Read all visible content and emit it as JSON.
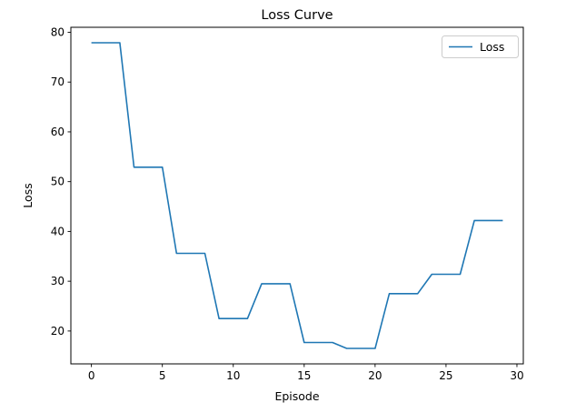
{
  "chart_data": {
    "type": "line",
    "title": "Loss Curve",
    "xlabel": "Episode",
    "ylabel": "Loss",
    "xlim": [
      -1.45,
      30.45
    ],
    "ylim": [
      13.4,
      81.0
    ],
    "xticks": [
      0,
      5,
      10,
      15,
      20,
      25,
      30
    ],
    "yticks": [
      20,
      30,
      40,
      50,
      60,
      70,
      80
    ],
    "grid": false,
    "legend": {
      "position": "upper right",
      "entries": [
        "Loss"
      ]
    },
    "x": [
      0,
      1,
      2,
      3,
      4,
      5,
      6,
      7,
      8,
      9,
      10,
      11,
      12,
      13,
      14,
      15,
      16,
      17,
      18,
      19,
      20,
      21,
      22,
      23,
      24,
      25,
      26,
      27,
      28,
      29
    ],
    "series": [
      {
        "name": "Loss",
        "color": "#1f77b4",
        "y": [
          77.9,
          77.9,
          77.9,
          52.9,
          52.9,
          52.9,
          35.6,
          35.6,
          35.6,
          22.5,
          22.5,
          22.5,
          29.5,
          29.5,
          29.5,
          17.7,
          17.7,
          17.7,
          16.5,
          16.5,
          16.5,
          27.5,
          27.5,
          27.5,
          31.4,
          31.4,
          31.4,
          42.2,
          42.2,
          42.2
        ]
      }
    ]
  },
  "figure": {
    "background_color": "#ffffff",
    "spine_color": "#000000",
    "text_color": "#000000"
  }
}
